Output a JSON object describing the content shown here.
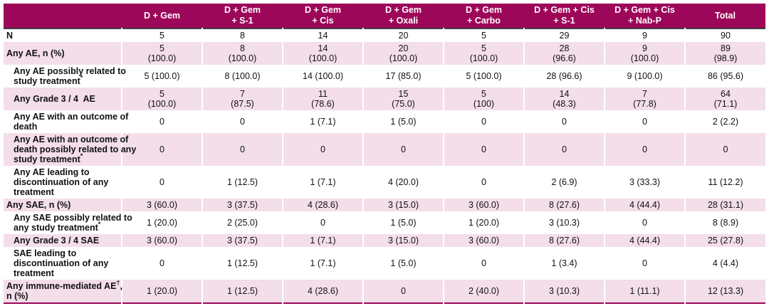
{
  "colors": {
    "header_bg": "#9D0759",
    "header_text": "#FFFFFF",
    "row_pink": "#F3DEE9",
    "row_white": "#FFFFFF",
    "border_dark": "#3D3D3D",
    "text": "#111111"
  },
  "table": {
    "columns": [
      {
        "label": ""
      },
      {
        "label": "D + Gem"
      },
      {
        "label": "D + Gem\n+ S-1"
      },
      {
        "label": "D + Gem\n+ Cis"
      },
      {
        "label": "D + Gem\n+ Oxali"
      },
      {
        "label": "D + Gem\n+ Carbo"
      },
      {
        "label": "D + Gem + Cis\n+ S-1"
      },
      {
        "label": "D + Gem + Cis\n+ Nab-P"
      },
      {
        "label": "Total"
      }
    ],
    "rows": [
      {
        "label_pre": "N",
        "label_sup": "",
        "label_post": "",
        "indent": false,
        "values": [
          "5",
          "8",
          "14",
          "20",
          "5",
          "29",
          "9",
          "90"
        ]
      },
      {
        "label_pre": "Any AE, n (%)",
        "label_sup": "",
        "label_post": "",
        "indent": false,
        "values": [
          "5\n(100.0)",
          "8\n(100.0)",
          "14\n(100.0)",
          "20\n(100.0)",
          "5\n(100.0)",
          "28\n(96.6)",
          "9\n(100.0)",
          "89\n(98.9)"
        ]
      },
      {
        "label_pre": "Any AE possibly related to\nstudy treatment",
        "label_sup": "*",
        "label_post": "",
        "indent": true,
        "values": [
          "5 (100.0)",
          "8 (100.0)",
          "14 (100.0)",
          "17 (85.0)",
          "5 (100.0)",
          "28 (96.6)",
          "9 (100.0)",
          "86 (95.6)"
        ]
      },
      {
        "label_pre": "Any Grade 3 / 4  AE",
        "label_sup": "",
        "label_post": "",
        "indent": true,
        "values": [
          "5\n(100.0)",
          "7\n(87.5)",
          "11\n(78.6)",
          "15\n(75.0)",
          "5\n(100)",
          "14\n(48.3)",
          "7\n(77.8)",
          "64\n(71.1)"
        ]
      },
      {
        "label_pre": "Any AE with an outcome of\ndeath",
        "label_sup": "",
        "label_post": "",
        "indent": true,
        "values": [
          "0",
          "0",
          "1 (7.1)",
          "1 (5.0)",
          "0",
          "0",
          "0",
          "2 (2.2)"
        ]
      },
      {
        "label_pre": "Any AE with an outcome of\ndeath possibly related to any\nstudy treatment",
        "label_sup": "*",
        "label_post": "",
        "indent": true,
        "values": [
          "0",
          "0",
          "0",
          "0",
          "0",
          "0",
          "0",
          "0"
        ]
      },
      {
        "label_pre": "Any AE leading to\ndiscontinuation of any\ntreatment",
        "label_sup": "",
        "label_post": "",
        "indent": true,
        "values": [
          "0",
          "1 (12.5)",
          "1 (7.1)",
          "4 (20.0)",
          "0",
          "2 (6.9)",
          "3 (33.3)",
          "11 (12.2)"
        ]
      },
      {
        "label_pre": "Any SAE, n (%)",
        "label_sup": "",
        "label_post": "",
        "indent": false,
        "values": [
          "3 (60.0)",
          "3 (37.5)",
          "4 (28.6)",
          "3 (15.0)",
          "3 (60.0)",
          "8 (27.6)",
          "4 (44.4)",
          "28 (31.1)"
        ]
      },
      {
        "label_pre": "Any SAE possibly related to\nany study treatment",
        "label_sup": "*",
        "label_post": "",
        "indent": true,
        "values": [
          "1 (20.0)",
          "2 (25.0)",
          "0",
          "1 (5.0)",
          "1 (20.0)",
          "3 (10.3)",
          "0",
          "8 (8.9)"
        ]
      },
      {
        "label_pre": "Any Grade 3 / 4 SAE",
        "label_sup": "",
        "label_post": "",
        "indent": true,
        "values": [
          "3 (60.0)",
          "3 (37.5)",
          "1 (7.1)",
          "3 (15.0)",
          "3 (60.0)",
          "8 (27.6)",
          "4 (44.4)",
          "25 (27.8)"
        ]
      },
      {
        "label_pre": "SAE leading to\ndiscontinuation of any\ntreatment",
        "label_sup": "",
        "label_post": "",
        "indent": true,
        "values": [
          "0",
          "1 (12.5)",
          "1 (7.1)",
          "1 (5.0)",
          "0",
          "1 (3.4)",
          "0",
          "4 (4.4)"
        ]
      },
      {
        "label_pre": "Any immune-mediated AE",
        "label_sup": "†",
        "label_post": ",\nn (%)",
        "indent": false,
        "values": [
          "1 (20.0)",
          "1 (12.5)",
          "4 (28.6)",
          "0",
          "2 (40.0)",
          "3 (10.3)",
          "1 (11.1)",
          "12 (13.3)"
        ]
      }
    ]
  }
}
